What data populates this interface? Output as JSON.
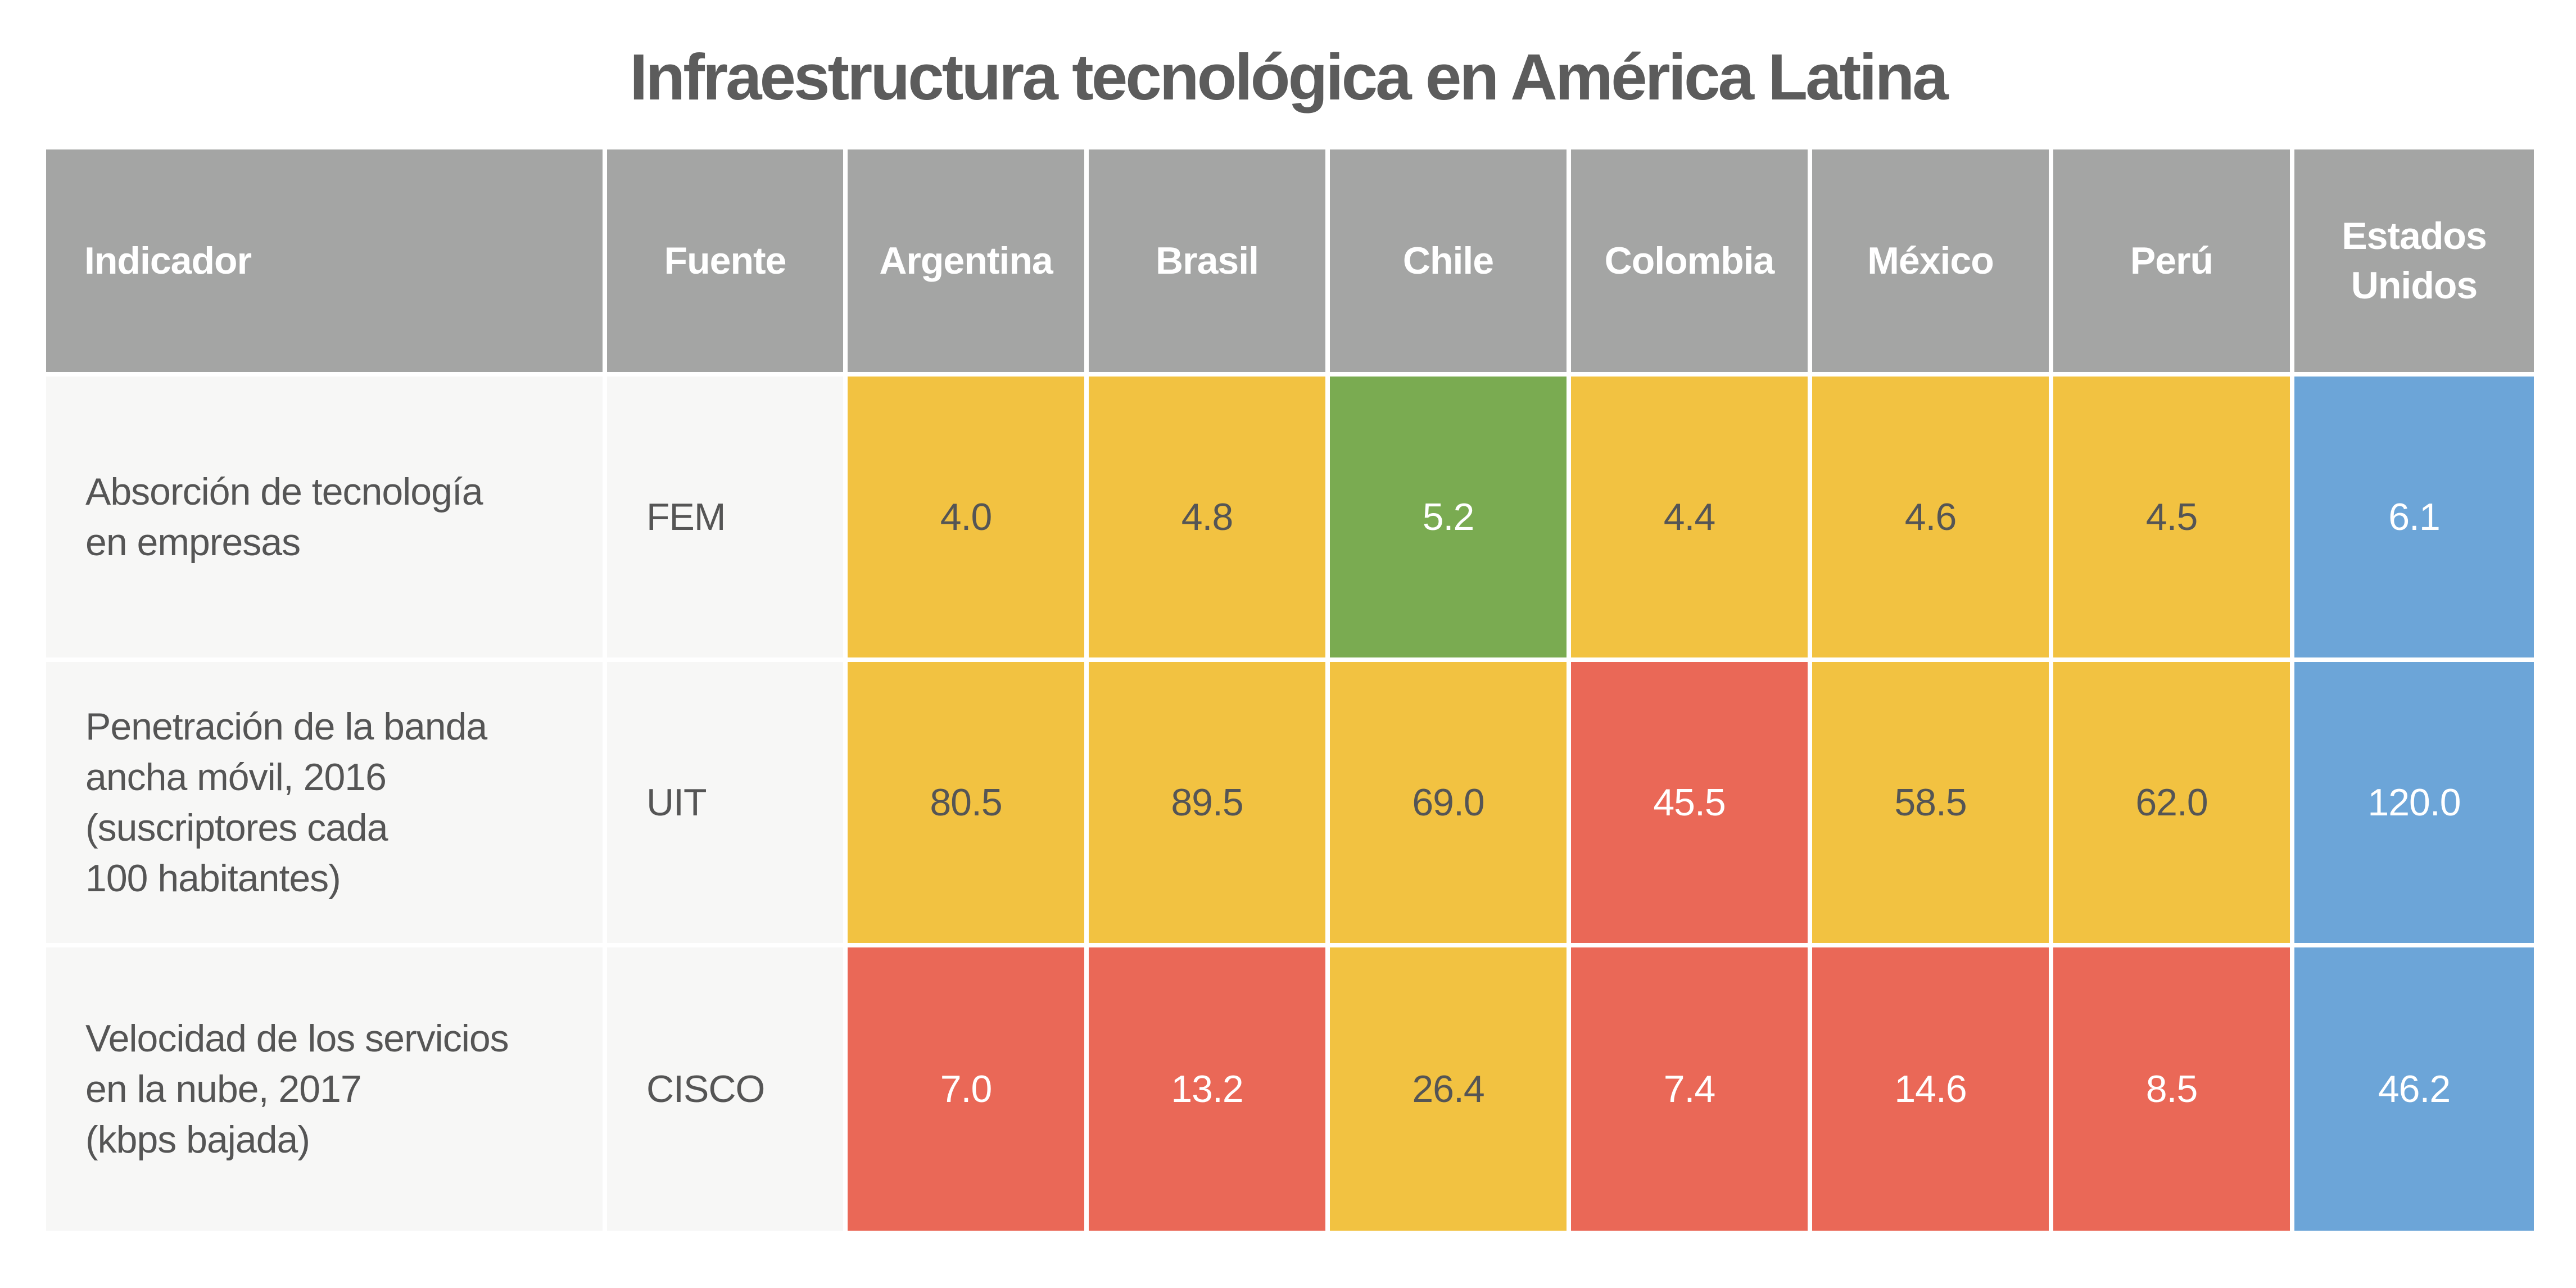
{
  "title": "Infraestructura tecnológica en América Latina",
  "colors": {
    "header_bg": "#a4a5a4",
    "label_bg": "#f7f7f6",
    "yellow": "#f2c241",
    "green": "#7aab51",
    "red": "#ea6857",
    "blue": "#6ca5d8"
  },
  "chart_data": {
    "type": "table",
    "title": "Infraestructura tecnológica en América Latina",
    "columns": [
      "Indicador",
      "Fuente",
      "Argentina",
      "Brasil",
      "Chile",
      "Colombia",
      "México",
      "Perú",
      "Estados Unidos"
    ],
    "countries": [
      "Argentina",
      "Brasil",
      "Chile",
      "Colombia",
      "México",
      "Perú",
      "Estados Unidos"
    ],
    "rows": [
      {
        "indicator": "Absorción de tecnología en empresas",
        "source": "FEM",
        "values": [
          "4.0",
          "4.8",
          "5.2",
          "4.4",
          "4.6",
          "4.5",
          "6.1"
        ],
        "levels": [
          "yellow",
          "yellow",
          "green",
          "yellow",
          "yellow",
          "yellow",
          "blue"
        ]
      },
      {
        "indicator": "Penetración de la banda ancha móvil, 2016 (suscriptores cada 100 habitantes)",
        "source": "UIT",
        "values": [
          "80.5",
          "89.5",
          "69.0",
          "45.5",
          "58.5",
          "62.0",
          "120.0"
        ],
        "levels": [
          "yellow",
          "yellow",
          "yellow",
          "red",
          "yellow",
          "yellow",
          "blue"
        ]
      },
      {
        "indicator": "Velocidad de los servicios en la nube, 2017 (kbps bajada)",
        "source": "CISCO",
        "values": [
          "7.0",
          "13.2",
          "26.4",
          "7.4",
          "14.6",
          "8.5",
          "46.2"
        ],
        "levels": [
          "red",
          "red",
          "yellow",
          "red",
          "red",
          "red",
          "blue"
        ]
      }
    ]
  }
}
